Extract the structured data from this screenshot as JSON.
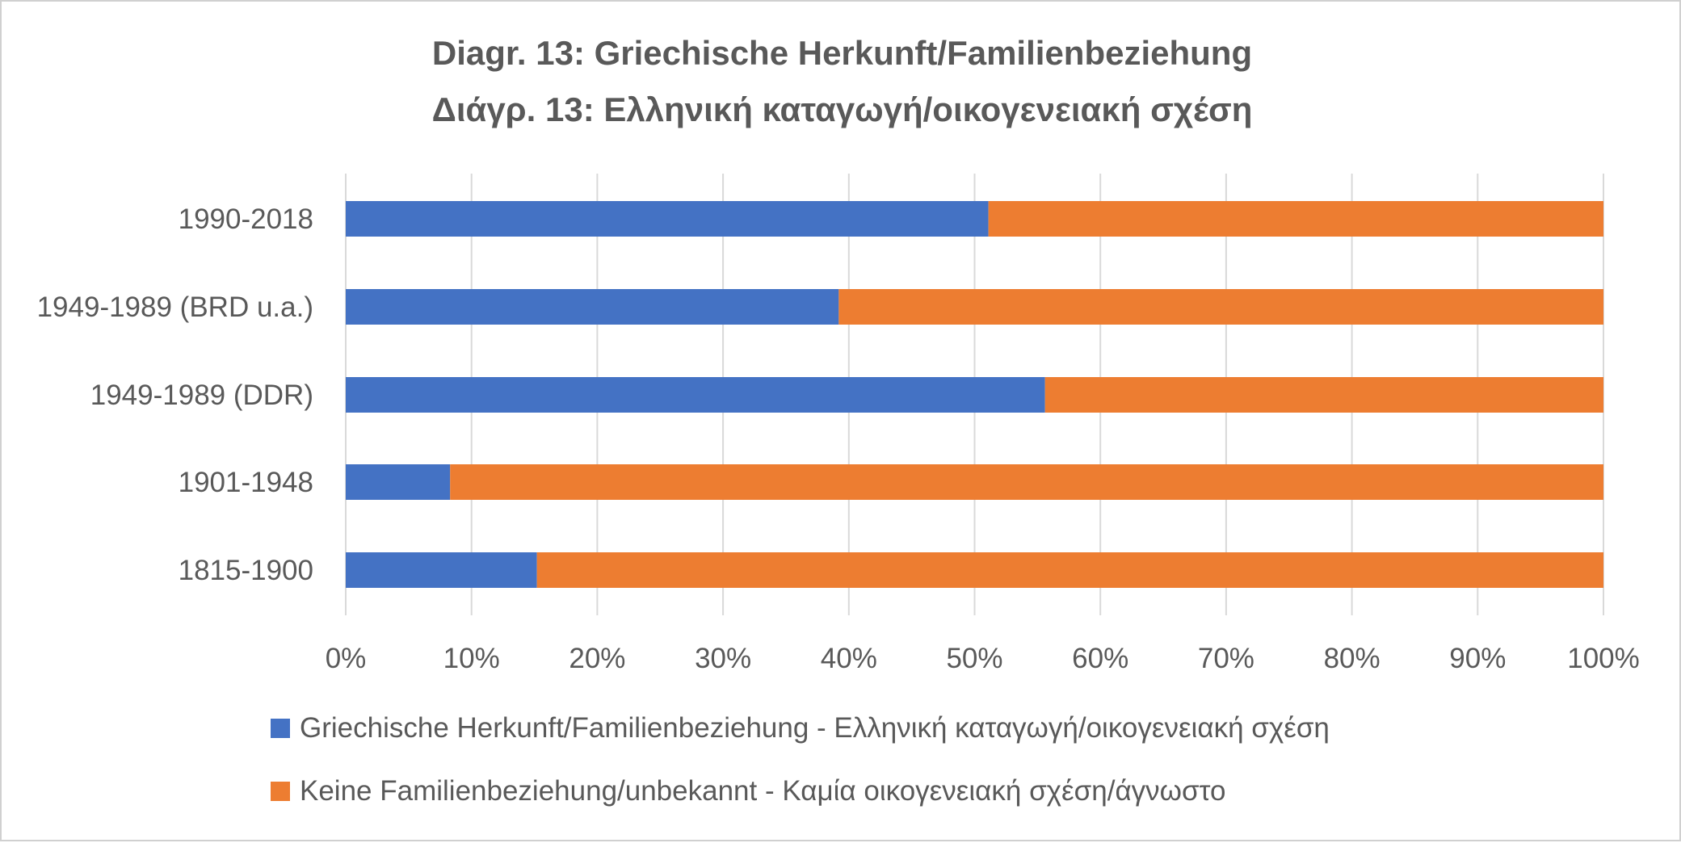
{
  "chart_data": {
    "type": "bar",
    "orientation": "horizontal",
    "stacked": "percent",
    "title": "Diagr. 13: Griechische Herkunft/Familienbeziehung",
    "subtitle": "Διάγρ. 13: Ελληνική καταγωγή/οικογενειακή σχέση",
    "xlabel": "",
    "ylabel": "",
    "xlim": [
      0,
      100
    ],
    "x_ticks": [
      "0%",
      "10%",
      "20%",
      "30%",
      "40%",
      "50%",
      "60%",
      "70%",
      "80%",
      "90%",
      "100%"
    ],
    "grid": "vertical",
    "legend_position": "bottom",
    "categories": [
      "1990-2018",
      "1949-1989 (BRD u.a.)",
      "1949-1989 (DDR)",
      "1901-1948",
      "1815-1900"
    ],
    "series": [
      {
        "name": "Griechische Herkunft/Familienbeziehung - Ελληνική καταγωγή/οικογενειακή σχέση",
        "color": "#4472C4",
        "values": [
          51.1,
          39.2,
          55.6,
          8.3,
          15.2
        ]
      },
      {
        "name": "Keine Familienbeziehung/unbekannt - Καμία οικογενειακή σχέση/άγνωστο",
        "color": "#ED7D31",
        "values": [
          48.9,
          60.8,
          44.4,
          91.7,
          84.8
        ]
      }
    ]
  }
}
